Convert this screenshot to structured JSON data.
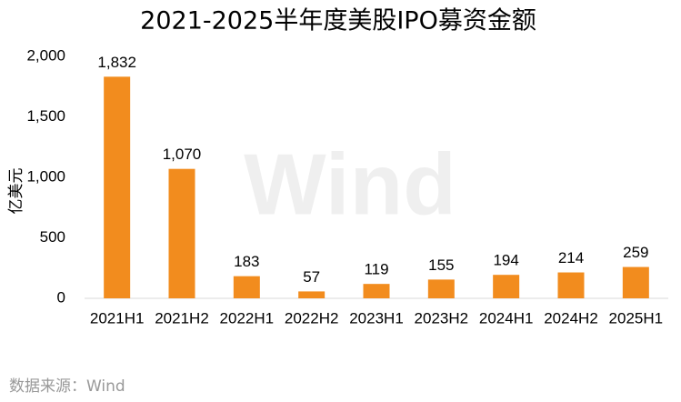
{
  "chart_data": {
    "type": "bar",
    "title": "2021-2025半年度美股IPO募资金额",
    "y_label": "亿美元",
    "source": "数据来源：Wind",
    "watermark": "Wind",
    "categories": [
      "2021H1",
      "2021H2",
      "2022H1",
      "2022H2",
      "2023H1",
      "2023H2",
      "2024H1",
      "2024H2",
      "2025H1"
    ],
    "values": [
      1832,
      1070,
      183,
      57,
      119,
      155,
      194,
      214,
      259
    ],
    "value_labels": [
      "1,832",
      "1,070",
      "183",
      "57",
      "119",
      "155",
      "194",
      "214",
      "259"
    ],
    "color": "#f28c1e",
    "ylim": [
      0,
      2000
    ],
    "yticks": [
      0,
      500,
      {
        "value": 1000,
        "label": "1,000"
      },
      {
        "value": 1500,
        "label": "1,500"
      },
      {
        "value": 2000,
        "label": "2,000"
      }
    ],
    "grid": false
  }
}
